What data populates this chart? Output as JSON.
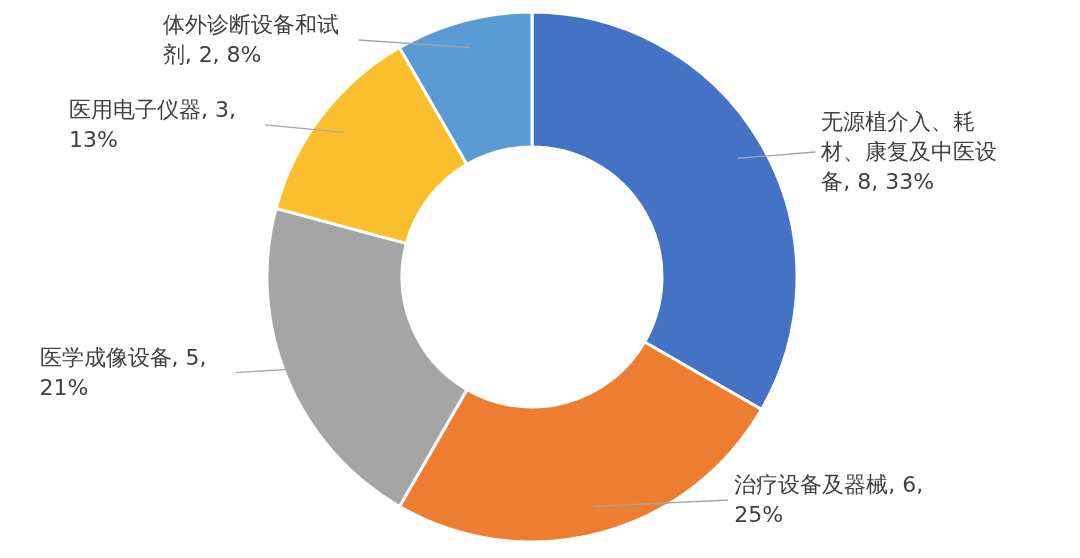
{
  "chart_data": {
    "type": "donut",
    "categories": [
      "无源植介入、耗材、康复及中医设备",
      "治疗设备及器械",
      "医学成像设备",
      "医用电子仪器",
      "体外诊断设备和试剂"
    ],
    "values": [
      8,
      6,
      5,
      3,
      2
    ],
    "colors": [
      "#4472c4",
      "#ed7d31",
      "#a5a5a5",
      "#fbbf2d",
      "#5b9bd5"
    ],
    "value_labels": [
      "8, 33%",
      "6, 25%",
      "5, 21%",
      "3, 13%",
      "2, 8%"
    ]
  }
}
